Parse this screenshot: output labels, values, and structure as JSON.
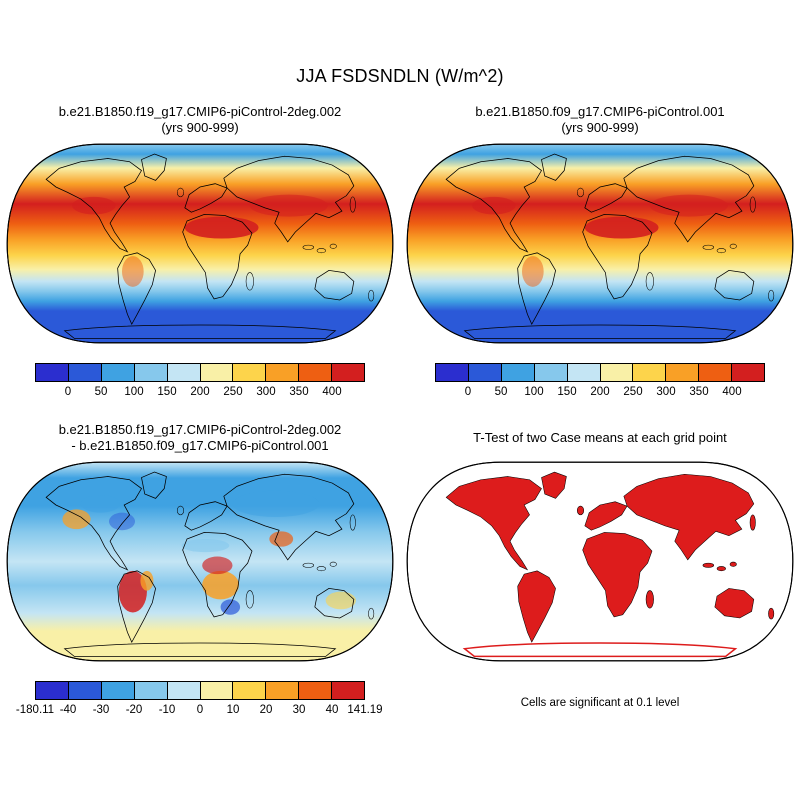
{
  "figure": {
    "title": "JJA FSDSNDLN (W/m^2)"
  },
  "panels": {
    "top_left": {
      "title_line1": "b.e21.B1850.f19_g17.CMIP6-piControl-2deg.002",
      "title_line2": "(yrs 900-999)"
    },
    "top_right": {
      "title_line1": "b.e21.B1850.f09_g17.CMIP6-piControl.001",
      "title_line2": "(yrs 900-999)"
    },
    "bottom_left": {
      "title_line1": "b.e21.B1850.f19_g17.CMIP6-piControl-2deg.002",
      "title_line2": "- b.e21.B1850.f09_g17.CMIP6-piControl.001"
    },
    "bottom_right": {
      "title": "T-Test of two Case means at each grid point",
      "caption": "Cells are significant at 0.1 level"
    }
  },
  "colorbars": {
    "absolute": {
      "colors": [
        "#2b2ecf",
        "#2b59d8",
        "#3fa2e2",
        "#86c8ec",
        "#c4e5f4",
        "#f9f0a7",
        "#fdd44b",
        "#f9a026",
        "#ee5f12",
        "#d31f1f"
      ],
      "labels": [
        "0",
        "50",
        "100",
        "150",
        "200",
        "250",
        "300",
        "350",
        "400"
      ],
      "label_mode": "internal"
    },
    "difference": {
      "colors": [
        "#2b2ecf",
        "#2b59d8",
        "#3fa2e2",
        "#86c8ec",
        "#c4e5f4",
        "#f9f0a7",
        "#fdd44b",
        "#f9a026",
        "#ee5f12",
        "#d31f1f"
      ],
      "labels": [
        "-180.11",
        "-40",
        "-30",
        "-20",
        "-10",
        "0",
        "10",
        "20",
        "30",
        "40",
        "141.19"
      ],
      "label_mode": "ends"
    }
  },
  "colors": {
    "significant": "#dd1c1c",
    "coastline": "#000000",
    "background": "#ffffff"
  },
  "chart_data": [
    {
      "type": "heatmap",
      "panel": "top_left",
      "projection": "robinson",
      "title": "b.e21.B1850.f19_g17.CMIP6-piControl-2deg.002 (yrs 900-999)",
      "variable": "FSDSNDLN",
      "season": "JJA",
      "units": "W/m^2",
      "colorbar_ticks": [
        0,
        50,
        100,
        150,
        200,
        250,
        300,
        350,
        400
      ],
      "legend_position": "bottom",
      "pattern": "high values (300-400) over subtropical deserts and NH summer continents, mid values in tropics, low values (<50) over the Southern Ocean and polar latitudes"
    },
    {
      "type": "heatmap",
      "panel": "top_right",
      "projection": "robinson",
      "title": "b.e21.B1850.f09_g17.CMIP6-piControl.001 (yrs 900-999)",
      "variable": "FSDSNDLN",
      "season": "JJA",
      "units": "W/m^2",
      "colorbar_ticks": [
        0,
        50,
        100,
        150,
        200,
        250,
        300,
        350,
        400
      ],
      "legend_position": "bottom",
      "pattern": "same spatial pattern as top_left panel"
    },
    {
      "type": "heatmap",
      "panel": "bottom_left",
      "projection": "robinson",
      "title": "b.e21.B1850.f19_g17.CMIP6-piControl-2deg.002 - b.e21.B1850.f09_g17.CMIP6-piControl.001",
      "units": "W/m^2",
      "min": -180.11,
      "max": 141.19,
      "colorbar_ticks": [
        -40,
        -30,
        -20,
        -10,
        0,
        10,
        20,
        30,
        40
      ],
      "legend_position": "bottom",
      "pattern": "mostly small negative (blue) differences with positive (orange/red) patches over South America, Africa and southern Asia; pale yellow over Antarctica"
    },
    {
      "type": "map",
      "panel": "bottom_right",
      "projection": "robinson",
      "title": "T-Test of two Case means at each grid point",
      "annotation": "Cells are significant at 0.1 level",
      "significance_level": 0.1,
      "pattern": "nearly all land grid cells flagged significant (solid red), ocean mostly not shown"
    }
  ]
}
